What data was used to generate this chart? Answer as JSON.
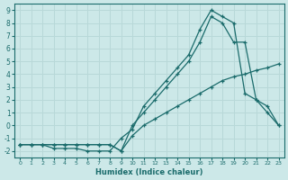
{
  "xlabel": "Humidex (Indice chaleur)",
  "xlim": [
    -0.5,
    23.5
  ],
  "ylim": [
    -2.5,
    9.5
  ],
  "xticks": [
    0,
    1,
    2,
    3,
    4,
    5,
    6,
    7,
    8,
    9,
    10,
    11,
    12,
    13,
    14,
    15,
    16,
    17,
    18,
    19,
    20,
    21,
    22,
    23
  ],
  "yticks": [
    -2,
    -1,
    0,
    1,
    2,
    3,
    4,
    5,
    6,
    7,
    8,
    9
  ],
  "background_color": "#cce8e8",
  "grid_color": "#b8d8d8",
  "line_color": "#1a6b6b",
  "line1_x": [
    0,
    1,
    2,
    3,
    4,
    5,
    6,
    7,
    8,
    9,
    10,
    11,
    12,
    13,
    14,
    15,
    16,
    17,
    18,
    19,
    20,
    21,
    22,
    23
  ],
  "line1_y": [
    -1.5,
    -1.5,
    -1.5,
    -1.5,
    -1.5,
    -1.5,
    -1.5,
    -1.5,
    -1.5,
    -2.0,
    -0.8,
    0.0,
    0.5,
    1.0,
    1.5,
    2.0,
    2.5,
    3.0,
    3.5,
    3.8,
    4.0,
    4.3,
    4.5,
    4.8
  ],
  "line2_x": [
    0,
    1,
    2,
    3,
    4,
    5,
    6,
    7,
    8,
    9,
    10,
    11,
    12,
    13,
    14,
    15,
    16,
    17,
    18,
    19,
    20,
    21,
    22,
    23
  ],
  "line2_y": [
    -1.5,
    -1.5,
    -1.5,
    -1.5,
    -1.5,
    -1.5,
    -1.5,
    -1.5,
    -1.5,
    -2.0,
    0.0,
    1.0,
    2.0,
    3.0,
    4.0,
    5.0,
    6.5,
    8.5,
    8.0,
    6.5,
    6.5,
    2.0,
    1.0,
    0.0
  ],
  "line3_x": [
    0,
    1,
    2,
    3,
    4,
    5,
    6,
    7,
    8,
    9,
    10,
    11,
    12,
    13,
    14,
    15,
    16,
    17,
    18,
    19,
    20,
    21,
    22,
    23
  ],
  "line3_y": [
    -1.5,
    -1.5,
    -1.5,
    -1.8,
    -1.8,
    -1.8,
    -2.0,
    -2.0,
    -2.0,
    -1.0,
    -0.3,
    1.5,
    2.5,
    3.5,
    4.5,
    5.5,
    7.5,
    9.0,
    8.5,
    8.0,
    2.5,
    2.0,
    1.5,
    0.0
  ]
}
